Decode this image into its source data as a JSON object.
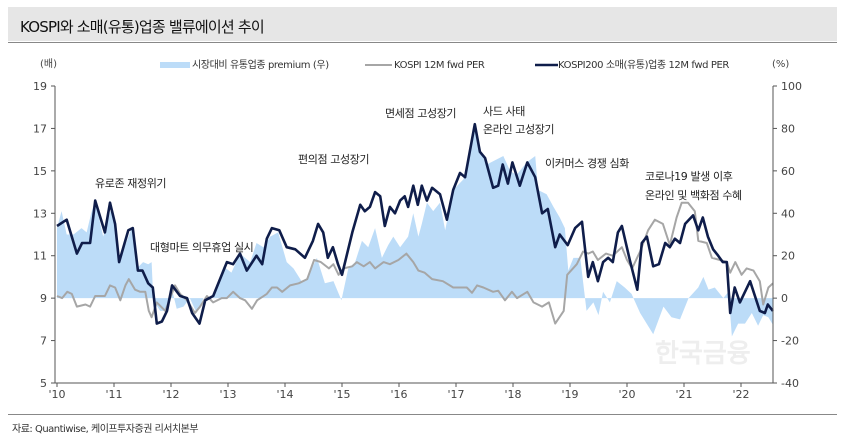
{
  "header": {
    "title": "KOSPI와 소매(유통)업종 밸류에이션 추이"
  },
  "footer": {
    "source": "자료: Quantiwise, 케이프투자증권 리서치본부"
  },
  "watermark": "한국금융",
  "chart_data": {
    "type": "line",
    "title": "",
    "y_left_unit": "(배)",
    "y_right_unit": "(%)",
    "ylim_left": [
      5,
      19
    ],
    "ylim_right": [
      -40,
      100
    ],
    "yticks_left": [
      "5",
      "7",
      "9",
      "11",
      "13",
      "15",
      "17",
      "19"
    ],
    "yticks_right": [
      "-40",
      "-20",
      "0",
      "20",
      "40",
      "60",
      "80",
      "100"
    ],
    "xlim": [
      2010,
      2022.6
    ],
    "xticks": [
      "'10",
      "'11",
      "'12",
      "'13",
      "'14",
      "'15",
      "'16",
      "'17",
      "'18",
      "'19",
      "'20",
      "'21",
      "'22"
    ],
    "grid": false,
    "legend_position": "top",
    "colors": {
      "premium": "#bcdcf8",
      "kospi": "#a6a6a6",
      "retail": "#0f1d4a"
    },
    "series": [
      {
        "name": "시장대비 유통업종 premium (우)",
        "type": "area",
        "axis": "right",
        "x": [
          2010.0,
          2010.08,
          2010.17,
          2010.29,
          2010.43,
          2010.52,
          2010.6,
          2010.67,
          2010.81,
          2010.96,
          2011.1,
          2011.31,
          2011.4,
          2011.51,
          2011.6,
          2011.66,
          2011.69,
          2011.81,
          2011.92,
          2012.01,
          2012.1,
          2012.22,
          2012.33,
          2012.45,
          2012.57,
          2012.74,
          2012.92,
          2013.06,
          2013.21,
          2013.39,
          2013.5,
          2013.62,
          2013.74,
          2013.88,
          2014.03,
          2014.15,
          2014.29,
          2014.38,
          2014.56,
          2014.7,
          2014.85,
          2014.99,
          2015.11,
          2015.23,
          2015.35,
          2015.46,
          2015.58,
          2015.7,
          2015.81,
          2015.9,
          2016.02,
          2016.16,
          2016.25,
          2016.34,
          2016.4,
          2016.49,
          2016.6,
          2016.72,
          2016.81,
          2016.95,
          2017.13,
          2017.33,
          2017.42,
          2017.54,
          2017.83,
          2017.95,
          2018.06,
          2018.24,
          2018.39,
          2018.44,
          2018.59,
          2018.71,
          2018.82,
          2018.91,
          2018.97,
          2019.06,
          2019.18,
          2019.29,
          2019.41,
          2019.5,
          2019.58,
          2019.7,
          2019.82,
          2019.96,
          2020.08,
          2020.23,
          2020.46,
          2020.64,
          2020.78,
          2020.93,
          2021.08,
          2021.25,
          2021.34,
          2021.43,
          2021.54,
          2021.69,
          2021.78,
          2021.84,
          2021.95,
          2022.07,
          2022.19,
          2022.3,
          2022.39,
          2022.48,
          2022.57
        ],
        "values": [
          33,
          41,
          30,
          30,
          33,
          31,
          40,
          46,
          29,
          43,
          18,
          33,
          14,
          17,
          16,
          17,
          -1,
          -6,
          -6,
          5,
          -5,
          -4,
          0,
          -7,
          0,
          0,
          15,
          12,
          21,
          17,
          26,
          24,
          29,
          31,
          17,
          14,
          8,
          9,
          19,
          7,
          8,
          -1,
          14,
          17,
          27,
          24,
          33,
          19,
          25,
          29,
          24,
          29,
          40,
          29,
          35,
          45,
          41,
          45,
          32,
          51,
          56,
          81,
          69,
          63,
          67,
          60,
          58,
          64,
          67,
          51,
          49,
          43,
          38,
          33,
          13,
          19,
          19,
          -6,
          -2,
          -8,
          3,
          -2,
          8,
          5,
          2,
          -7,
          -17,
          -4,
          -9,
          -10,
          0,
          5,
          10,
          4,
          5,
          0,
          3,
          -18,
          -12,
          -12,
          -7,
          -13,
          -8,
          -9,
          -13
        ]
      },
      {
        "name": "KOSPI 12M fwd PER",
        "type": "line",
        "axis": "left",
        "x": [
          2010.0,
          2010.09,
          2010.18,
          2010.26,
          2010.35,
          2010.5,
          2010.58,
          2010.67,
          2010.84,
          2010.93,
          2011.02,
          2011.11,
          2011.2,
          2011.26,
          2011.37,
          2011.46,
          2011.55,
          2011.61,
          2011.66,
          2011.75,
          2011.9,
          2012.07,
          2012.16,
          2012.28,
          2012.42,
          2012.51,
          2012.63,
          2012.74,
          2012.89,
          2012.98,
          2013.09,
          2013.21,
          2013.3,
          2013.42,
          2013.51,
          2013.68,
          2013.77,
          2013.86,
          2013.95,
          2014.09,
          2014.24,
          2014.39,
          2014.51,
          2014.63,
          2014.77,
          2014.85,
          2014.94,
          2015.03,
          2015.18,
          2015.26,
          2015.38,
          2015.49,
          2015.58,
          2015.73,
          2015.84,
          2015.99,
          2016.13,
          2016.25,
          2016.34,
          2016.45,
          2016.58,
          2016.77,
          2016.95,
          2017.19,
          2017.28,
          2017.37,
          2017.48,
          2017.65,
          2017.74,
          2017.86,
          2017.98,
          2018.07,
          2018.25,
          2018.36,
          2018.51,
          2018.63,
          2018.74,
          2018.89,
          2018.95,
          2019.12,
          2019.23,
          2019.32,
          2019.4,
          2019.49,
          2019.63,
          2019.75,
          2019.91,
          2020.0,
          2020.09,
          2020.23,
          2020.37,
          2020.49,
          2020.63,
          2020.75,
          2020.87,
          2020.96,
          2021.07,
          2021.19,
          2021.25,
          2021.4,
          2021.49,
          2021.63,
          2021.75,
          2021.81,
          2021.9,
          2022.01,
          2022.1,
          2022.22,
          2022.33,
          2022.39,
          2022.48,
          2022.56
        ],
        "values": [
          9.1,
          9.0,
          9.3,
          9.2,
          8.6,
          8.7,
          8.6,
          9.1,
          9.1,
          9.6,
          9.5,
          8.9,
          9.6,
          9.9,
          9.4,
          9.3,
          9.3,
          8.4,
          8.1,
          8.8,
          8.4,
          9.6,
          9.2,
          8.9,
          8.3,
          8.6,
          9.1,
          8.8,
          9.0,
          9.0,
          9.3,
          9.0,
          8.9,
          8.5,
          8.9,
          9.2,
          9.5,
          9.5,
          9.3,
          9.6,
          9.7,
          9.9,
          10.8,
          10.7,
          10.4,
          10.6,
          10.1,
          10.4,
          10.5,
          10.7,
          10.5,
          10.7,
          10.4,
          10.7,
          10.6,
          10.8,
          11.1,
          10.7,
          10.3,
          10.2,
          9.9,
          9.8,
          9.5,
          9.5,
          9.25,
          9.6,
          9.5,
          9.3,
          9.35,
          8.9,
          9.3,
          9.0,
          9.3,
          8.8,
          8.6,
          8.8,
          7.8,
          8.4,
          10.1,
          10.6,
          11.2,
          11.1,
          11.2,
          10.8,
          11.1,
          11.0,
          11.4,
          10.8,
          10.4,
          11.2,
          12.2,
          12.7,
          12.5,
          11.5,
          12.8,
          13.5,
          13.5,
          13.1,
          11.7,
          11.6,
          10.9,
          10.8,
          10.7,
          10.2,
          10.7,
          10.1,
          10.4,
          10.3,
          9.8,
          8.7,
          9.5,
          9.7
        ]
      },
      {
        "name": "KOSPI200 소매(유통)업종 12M fwd PER",
        "type": "line",
        "axis": "left",
        "x": [
          2010.0,
          2010.17,
          2010.35,
          2010.44,
          2010.58,
          2010.67,
          2010.84,
          2010.93,
          2011.02,
          2011.09,
          2011.25,
          2011.33,
          2011.42,
          2011.5,
          2011.6,
          2011.68,
          2011.75,
          2011.84,
          2011.93,
          2012.02,
          2012.16,
          2012.28,
          2012.37,
          2012.5,
          2012.6,
          2012.74,
          2012.98,
          2013.09,
          2013.21,
          2013.33,
          2013.5,
          2013.6,
          2013.68,
          2013.77,
          2013.9,
          2014.03,
          2014.18,
          2014.35,
          2014.49,
          2014.58,
          2014.67,
          2014.75,
          2014.84,
          2014.93,
          2015.0,
          2015.18,
          2015.32,
          2015.4,
          2015.49,
          2015.58,
          2015.67,
          2015.75,
          2015.84,
          2015.93,
          2016.02,
          2016.1,
          2016.16,
          2016.25,
          2016.33,
          2016.4,
          2016.49,
          2016.58,
          2016.72,
          2016.84,
          2016.95,
          2017.07,
          2017.16,
          2017.33,
          2017.42,
          2017.51,
          2017.65,
          2017.74,
          2017.82,
          2017.91,
          2017.99,
          2018.12,
          2018.25,
          2018.39,
          2018.51,
          2018.61,
          2018.74,
          2018.82,
          2018.96,
          2019.09,
          2019.21,
          2019.32,
          2019.4,
          2019.49,
          2019.58,
          2019.67,
          2019.75,
          2019.84,
          2019.91,
          2020.05,
          2020.18,
          2020.26,
          2020.35,
          2020.46,
          2020.56,
          2020.67,
          2020.75,
          2020.84,
          2020.93,
          2021.02,
          2021.16,
          2021.25,
          2021.33,
          2021.42,
          2021.51,
          2021.6,
          2021.68,
          2021.75,
          2021.81,
          2021.89,
          2021.98,
          2022.16,
          2022.33,
          2022.42,
          2022.47,
          2022.56
        ],
        "values": [
          12.4,
          12.7,
          11.1,
          11.6,
          11.6,
          13.6,
          12.1,
          13.5,
          12.5,
          10.7,
          12.2,
          12.3,
          10.3,
          10.3,
          9.7,
          9.5,
          7.8,
          7.9,
          8.4,
          9.6,
          9.1,
          9.0,
          8.3,
          7.8,
          8.9,
          9.1,
          10.7,
          10.6,
          11.1,
          10.3,
          11.0,
          10.6,
          11.8,
          12.3,
          12.2,
          11.4,
          11.3,
          10.9,
          11.7,
          12.5,
          12.1,
          10.9,
          11.4,
          10.6,
          10.1,
          12.1,
          13.4,
          13.1,
          13.3,
          14.0,
          13.8,
          12.4,
          13.3,
          13.0,
          13.6,
          13.8,
          13.3,
          14.3,
          13.4,
          14.3,
          13.6,
          14.2,
          13.9,
          12.7,
          14.1,
          14.9,
          14.7,
          17.2,
          15.9,
          15.6,
          14.2,
          14.3,
          15.3,
          14.4,
          15.4,
          14.3,
          15.4,
          14.7,
          13.0,
          13.2,
          11.4,
          12.0,
          11.5,
          12.3,
          12.6,
          10.0,
          10.7,
          9.8,
          10.7,
          10.9,
          10.7,
          12.1,
          12.4,
          10.8,
          9.4,
          11.6,
          11.9,
          10.5,
          10.6,
          11.6,
          11.4,
          11.8,
          11.6,
          12.5,
          12.9,
          12.2,
          12.8,
          11.9,
          11.3,
          11.0,
          10.7,
          10.7,
          8.3,
          9.5,
          8.8,
          9.8,
          8.4,
          8.3,
          8.7,
          8.4
        ]
      }
    ],
    "annotations": [
      {
        "text": "유로존 재정위기"
      },
      {
        "text": "대형마트 의무휴업 실시"
      },
      {
        "text": "편의점 고성장기"
      },
      {
        "text": "면세점 고성장기"
      },
      {
        "text": "사드 사태"
      },
      {
        "text": "온라인 고성장기"
      },
      {
        "text": "이커머스 경쟁 심화"
      },
      {
        "text": "코로나19 발생 이후"
      },
      {
        "text": "온라인 및 백화점 수혜"
      }
    ]
  }
}
